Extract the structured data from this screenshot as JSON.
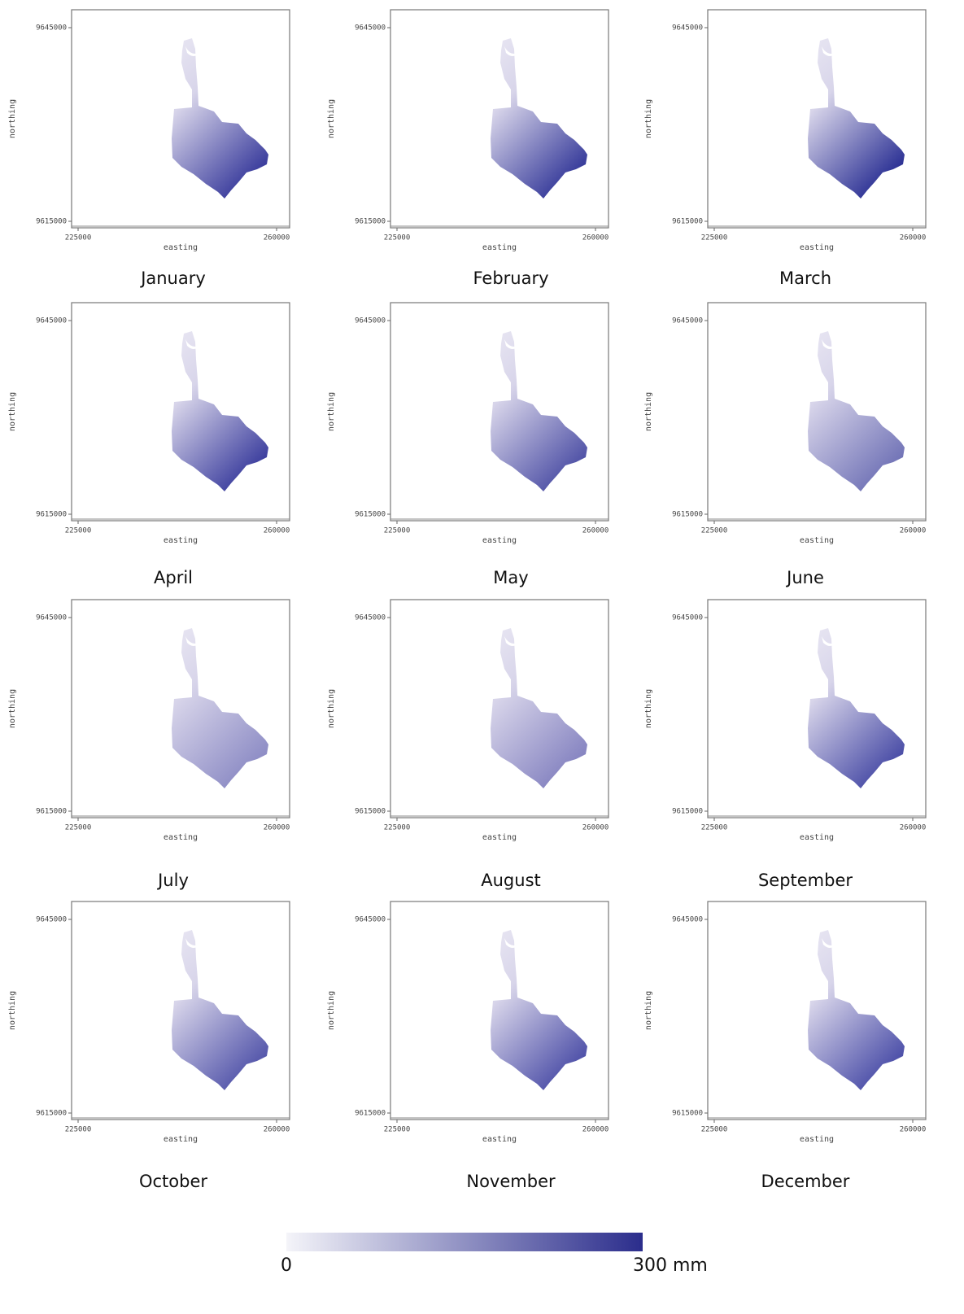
{
  "panels": [
    {
      "title": "January",
      "color": "#3d3f9e"
    },
    {
      "title": "February",
      "color": "#3a3e9c"
    },
    {
      "title": "March",
      "color": "#2f3496"
    },
    {
      "title": "April",
      "color": "#4042a0"
    },
    {
      "title": "May",
      "color": "#5355a8"
    },
    {
      "title": "June",
      "color": "#7476b8"
    },
    {
      "title": "July",
      "color": "#8f8ec6"
    },
    {
      "title": "August",
      "color": "#8886c2"
    },
    {
      "title": "September",
      "color": "#4d50a8"
    },
    {
      "title": "October",
      "color": "#5759ac"
    },
    {
      "title": "November",
      "color": "#5254aa"
    },
    {
      "title": "December",
      "color": "#4f52aa"
    }
  ],
  "axes": {
    "xlabel": "easting",
    "ylabel": "northing",
    "xticks": [
      225000,
      260000
    ],
    "yticks": [
      9615000,
      9645000
    ]
  },
  "colorbar": {
    "ticks": [
      0,
      {
        "value": 300,
        "label": "300 mm"
      }
    ],
    "low_color": "#f4f4f9",
    "high_color": "#2b2d8c"
  }
}
